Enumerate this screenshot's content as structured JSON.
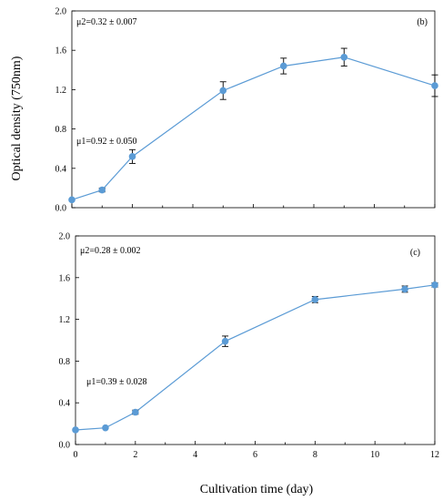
{
  "figure": {
    "ylabel": "Optical density (750nm)",
    "xlabel": "Cultivation time (day)"
  },
  "chart_data": [
    {
      "type": "line",
      "panel_label": "(b)",
      "annotations": [
        "μ2=0.32 ± 0.007",
        "μ1=0.92 ± 0.050"
      ],
      "x": [
        0,
        1,
        2,
        5,
        7,
        9,
        12
      ],
      "series": [
        {
          "values": [
            0.08,
            0.18,
            0.52,
            1.19,
            1.44,
            1.53,
            1.24
          ],
          "errors": [
            0.0,
            0.02,
            0.07,
            0.09,
            0.08,
            0.09,
            0.11
          ],
          "color": "#5b9bd5"
        }
      ],
      "xlim": [
        0,
        12
      ],
      "ylim": [
        0,
        2.0
      ],
      "xticks": [],
      "yticks": [
        "0.0",
        "0.4",
        "0.8",
        "1.2",
        "1.6",
        "2.0"
      ],
      "grid": false
    },
    {
      "type": "line",
      "panel_label": "(c)",
      "annotations": [
        "μ2=0.28 ± 0.002",
        "μ1=0.39 ± 0.028"
      ],
      "x": [
        0,
        1,
        2,
        5,
        8,
        11,
        12
      ],
      "series": [
        {
          "values": [
            0.14,
            0.16,
            0.31,
            0.99,
            1.39,
            1.49,
            1.53
          ],
          "errors": [
            0.0,
            0.0,
            0.02,
            0.05,
            0.03,
            0.03,
            0.02
          ],
          "color": "#5b9bd5"
        }
      ],
      "xlim": [
        0,
        12
      ],
      "ylim": [
        0,
        2.0
      ],
      "xticks": [
        "0",
        "2",
        "4",
        "6",
        "8",
        "10",
        "12"
      ],
      "yticks": [
        "0.0",
        "0.4",
        "0.8",
        "1.2",
        "1.6",
        "2.0"
      ],
      "grid": false
    }
  ]
}
